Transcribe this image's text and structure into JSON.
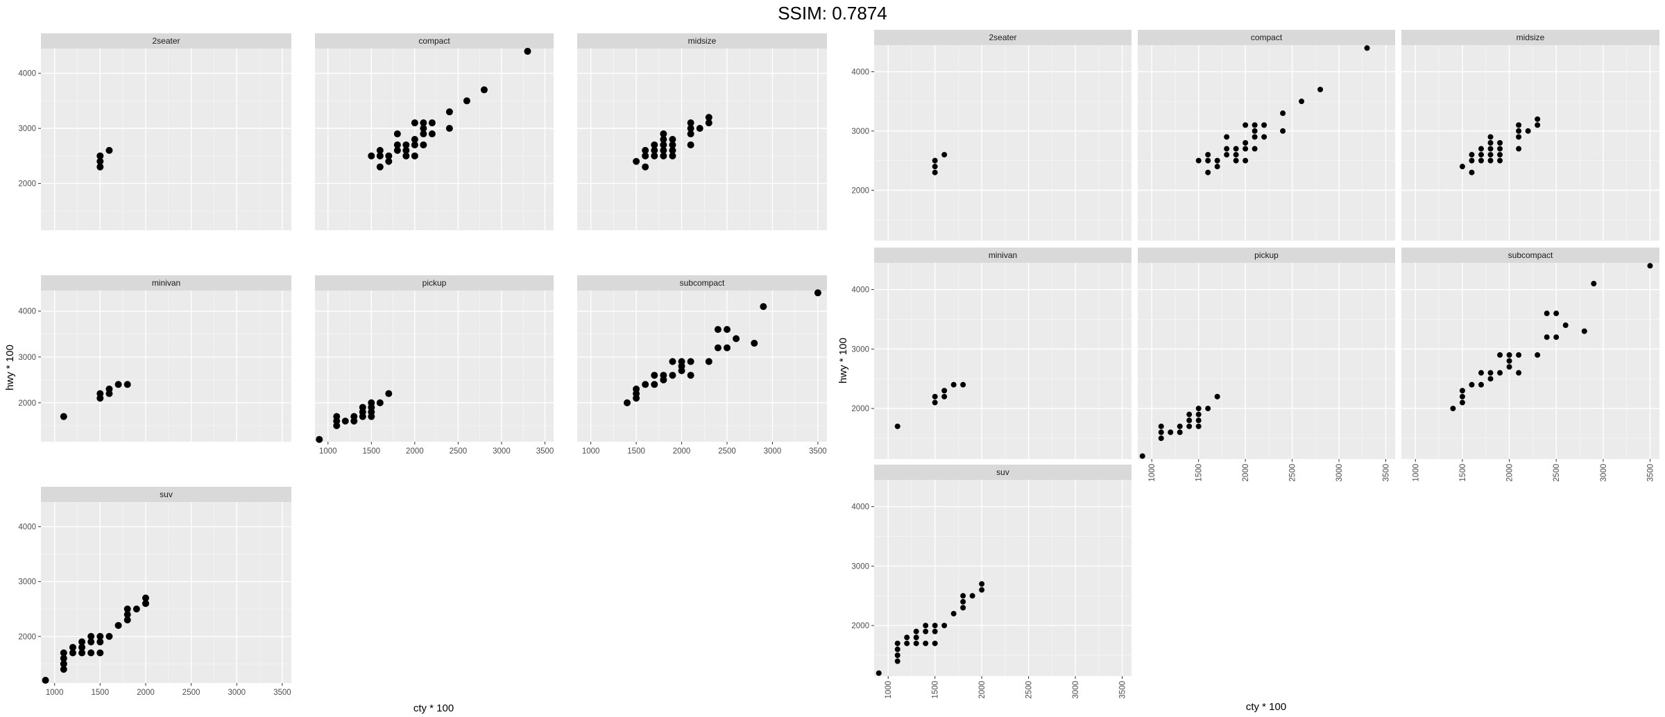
{
  "header": {
    "title": "SSIM: 0.7874"
  },
  "colors": {
    "panel_bg": "#ebebeb",
    "strip_bg": "#d9d9d9",
    "grid": "#ffffff",
    "point": "#000000",
    "tick": "#4d4d4d"
  },
  "chart_data": [
    {
      "type": "scatter",
      "facet_layout": "3x3, fixed scales, x tick labels only on bottom panel of each column",
      "xlabel": "cty * 100",
      "ylabel": "hwy * 100",
      "xlim": [
        850,
        3600
      ],
      "ylim": [
        1150,
        4450
      ],
      "x_ticks": [
        1000,
        1500,
        2000,
        2500,
        3000,
        3500
      ],
      "y_ticks": [
        2000,
        3000,
        4000
      ],
      "x_tick_rotation": 0,
      "grid": true,
      "facets": [
        {
          "label": "2seater",
          "points": [
            [
              1500,
              2300
            ],
            [
              1500,
              2400
            ],
            [
              1500,
              2500
            ],
            [
              1600,
              2600
            ]
          ]
        },
        {
          "label": "compact",
          "points": [
            [
              1500,
              2500
            ],
            [
              1600,
              2300
            ],
            [
              1600,
              2500
            ],
            [
              1600,
              2600
            ],
            [
              1700,
              2400
            ],
            [
              1700,
              2500
            ],
            [
              1800,
              2600
            ],
            [
              1800,
              2700
            ],
            [
              1800,
              2900
            ],
            [
              1900,
              2500
            ],
            [
              1900,
              2600
            ],
            [
              1900,
              2700
            ],
            [
              2000,
              2500
            ],
            [
              2000,
              2700
            ],
            [
              2000,
              2800
            ],
            [
              2000,
              3100
            ],
            [
              2100,
              2700
            ],
            [
              2100,
              2900
            ],
            [
              2100,
              3000
            ],
            [
              2100,
              3100
            ],
            [
              2200,
              2900
            ],
            [
              2200,
              3100
            ],
            [
              2400,
              3000
            ],
            [
              2400,
              3300
            ],
            [
              2600,
              3500
            ],
            [
              2800,
              3700
            ],
            [
              3300,
              4400
            ]
          ]
        },
        {
          "label": "midsize",
          "points": [
            [
              1500,
              2400
            ],
            [
              1600,
              2300
            ],
            [
              1600,
              2500
            ],
            [
              1600,
              2600
            ],
            [
              1700,
              2500
            ],
            [
              1700,
              2600
            ],
            [
              1700,
              2700
            ],
            [
              1800,
              2500
            ],
            [
              1800,
              2600
            ],
            [
              1800,
              2700
            ],
            [
              1800,
              2800
            ],
            [
              1800,
              2900
            ],
            [
              1900,
              2500
            ],
            [
              1900,
              2600
            ],
            [
              1900,
              2700
            ],
            [
              1900,
              2800
            ],
            [
              2100,
              2700
            ],
            [
              2100,
              2900
            ],
            [
              2100,
              3000
            ],
            [
              2100,
              3100
            ],
            [
              2200,
              3000
            ],
            [
              2300,
              3100
            ],
            [
              2300,
              3200
            ]
          ]
        },
        {
          "label": "minivan",
          "points": [
            [
              1100,
              1700
            ],
            [
              1500,
              2100
            ],
            [
              1500,
              2200
            ],
            [
              1600,
              2200
            ],
            [
              1600,
              2300
            ],
            [
              1700,
              2400
            ],
            [
              1800,
              2400
            ]
          ]
        },
        {
          "label": "pickup",
          "points": [
            [
              900,
              1200
            ],
            [
              1100,
              1500
            ],
            [
              1100,
              1600
            ],
            [
              1100,
              1700
            ],
            [
              1200,
              1600
            ],
            [
              1300,
              1600
            ],
            [
              1300,
              1700
            ],
            [
              1400,
              1700
            ],
            [
              1400,
              1800
            ],
            [
              1400,
              1900
            ],
            [
              1500,
              1700
            ],
            [
              1500,
              1800
            ],
            [
              1500,
              1900
            ],
            [
              1500,
              2000
            ],
            [
              1600,
              2000
            ],
            [
              1700,
              2200
            ]
          ]
        },
        {
          "label": "subcompact",
          "points": [
            [
              1400,
              2000
            ],
            [
              1500,
              2100
            ],
            [
              1500,
              2200
            ],
            [
              1500,
              2300
            ],
            [
              1600,
              2400
            ],
            [
              1700,
              2400
            ],
            [
              1700,
              2600
            ],
            [
              1800,
              2500
            ],
            [
              1800,
              2600
            ],
            [
              1900,
              2600
            ],
            [
              1900,
              2900
            ],
            [
              2000,
              2700
            ],
            [
              2000,
              2800
            ],
            [
              2000,
              2900
            ],
            [
              2100,
              2600
            ],
            [
              2100,
              2900
            ],
            [
              2300,
              2900
            ],
            [
              2400,
              3200
            ],
            [
              2400,
              3600
            ],
            [
              2500,
              3200
            ],
            [
              2500,
              3600
            ],
            [
              2600,
              3400
            ],
            [
              2800,
              3300
            ],
            [
              2900,
              4100
            ],
            [
              3500,
              4400
            ]
          ]
        },
        {
          "label": "suv",
          "points": [
            [
              900,
              1200
            ],
            [
              1100,
              1400
            ],
            [
              1100,
              1500
            ],
            [
              1100,
              1600
            ],
            [
              1100,
              1700
            ],
            [
              1200,
              1700
            ],
            [
              1200,
              1800
            ],
            [
              1300,
              1700
            ],
            [
              1300,
              1800
            ],
            [
              1300,
              1900
            ],
            [
              1400,
              1700
            ],
            [
              1400,
              1900
            ],
            [
              1400,
              2000
            ],
            [
              1500,
              1700
            ],
            [
              1500,
              1900
            ],
            [
              1500,
              2000
            ],
            [
              1600,
              2000
            ],
            [
              1700,
              2200
            ],
            [
              1800,
              2300
            ],
            [
              1800,
              2400
            ],
            [
              1800,
              2500
            ],
            [
              1900,
              2500
            ],
            [
              2000,
              2600
            ],
            [
              2000,
              2700
            ]
          ]
        }
      ]
    },
    {
      "type": "scatter",
      "facet_layout": "3x3, fixed scales, x tick labels rotated vertically",
      "xlabel": "cty * 100",
      "ylabel": "hwy * 100",
      "xlim": [
        850,
        3600
      ],
      "ylim": [
        1150,
        4450
      ],
      "x_ticks": [
        1000,
        1500,
        2000,
        2500,
        3000,
        3500
      ],
      "y_ticks": [
        2000,
        3000,
        4000
      ],
      "x_tick_rotation": -90,
      "grid": true,
      "facets": [
        {
          "label": "2seater",
          "points": [
            [
              1500,
              2300
            ],
            [
              1500,
              2400
            ],
            [
              1500,
              2500
            ],
            [
              1600,
              2600
            ]
          ]
        },
        {
          "label": "compact",
          "points": [
            [
              1500,
              2500
            ],
            [
              1600,
              2300
            ],
            [
              1600,
              2500
            ],
            [
              1600,
              2600
            ],
            [
              1700,
              2400
            ],
            [
              1700,
              2500
            ],
            [
              1800,
              2600
            ],
            [
              1800,
              2700
            ],
            [
              1800,
              2900
            ],
            [
              1900,
              2500
            ],
            [
              1900,
              2600
            ],
            [
              1900,
              2700
            ],
            [
              2000,
              2500
            ],
            [
              2000,
              2700
            ],
            [
              2000,
              2800
            ],
            [
              2000,
              3100
            ],
            [
              2100,
              2700
            ],
            [
              2100,
              2900
            ],
            [
              2100,
              3000
            ],
            [
              2100,
              3100
            ],
            [
              2200,
              2900
            ],
            [
              2200,
              3100
            ],
            [
              2400,
              3000
            ],
            [
              2400,
              3300
            ],
            [
              2600,
              3500
            ],
            [
              2800,
              3700
            ],
            [
              3300,
              4400
            ]
          ]
        },
        {
          "label": "midsize",
          "points": [
            [
              1500,
              2400
            ],
            [
              1600,
              2300
            ],
            [
              1600,
              2500
            ],
            [
              1600,
              2600
            ],
            [
              1700,
              2500
            ],
            [
              1700,
              2600
            ],
            [
              1700,
              2700
            ],
            [
              1800,
              2500
            ],
            [
              1800,
              2600
            ],
            [
              1800,
              2700
            ],
            [
              1800,
              2800
            ],
            [
              1800,
              2900
            ],
            [
              1900,
              2500
            ],
            [
              1900,
              2600
            ],
            [
              1900,
              2700
            ],
            [
              1900,
              2800
            ],
            [
              2100,
              2700
            ],
            [
              2100,
              2900
            ],
            [
              2100,
              3000
            ],
            [
              2100,
              3100
            ],
            [
              2200,
              3000
            ],
            [
              2300,
              3100
            ],
            [
              2300,
              3200
            ]
          ]
        },
        {
          "label": "minivan",
          "points": [
            [
              1100,
              1700
            ],
            [
              1500,
              2100
            ],
            [
              1500,
              2200
            ],
            [
              1600,
              2200
            ],
            [
              1600,
              2300
            ],
            [
              1700,
              2400
            ],
            [
              1800,
              2400
            ]
          ]
        },
        {
          "label": "pickup",
          "points": [
            [
              900,
              1200
            ],
            [
              1100,
              1500
            ],
            [
              1100,
              1600
            ],
            [
              1100,
              1700
            ],
            [
              1200,
              1600
            ],
            [
              1300,
              1600
            ],
            [
              1300,
              1700
            ],
            [
              1400,
              1700
            ],
            [
              1400,
              1800
            ],
            [
              1400,
              1900
            ],
            [
              1500,
              1700
            ],
            [
              1500,
              1800
            ],
            [
              1500,
              1900
            ],
            [
              1500,
              2000
            ],
            [
              1600,
              2000
            ],
            [
              1700,
              2200
            ]
          ]
        },
        {
          "label": "subcompact",
          "points": [
            [
              1400,
              2000
            ],
            [
              1500,
              2100
            ],
            [
              1500,
              2200
            ],
            [
              1500,
              2300
            ],
            [
              1600,
              2400
            ],
            [
              1700,
              2400
            ],
            [
              1700,
              2600
            ],
            [
              1800,
              2500
            ],
            [
              1800,
              2600
            ],
            [
              1900,
              2600
            ],
            [
              1900,
              2900
            ],
            [
              2000,
              2700
            ],
            [
              2000,
              2800
            ],
            [
              2000,
              2900
            ],
            [
              2100,
              2600
            ],
            [
              2100,
              2900
            ],
            [
              2300,
              2900
            ],
            [
              2400,
              3200
            ],
            [
              2400,
              3600
            ],
            [
              2500,
              3200
            ],
            [
              2500,
              3600
            ],
            [
              2600,
              3400
            ],
            [
              2800,
              3300
            ],
            [
              2900,
              4100
            ],
            [
              3500,
              4400
            ]
          ]
        },
        {
          "label": "suv",
          "points": [
            [
              900,
              1200
            ],
            [
              1100,
              1400
            ],
            [
              1100,
              1500
            ],
            [
              1100,
              1600
            ],
            [
              1100,
              1700
            ],
            [
              1200,
              1700
            ],
            [
              1200,
              1800
            ],
            [
              1300,
              1700
            ],
            [
              1300,
              1800
            ],
            [
              1300,
              1900
            ],
            [
              1400,
              1700
            ],
            [
              1400,
              1900
            ],
            [
              1400,
              2000
            ],
            [
              1500,
              1700
            ],
            [
              1500,
              1900
            ],
            [
              1500,
              2000
            ],
            [
              1600,
              2000
            ],
            [
              1700,
              2200
            ],
            [
              1800,
              2300
            ],
            [
              1800,
              2400
            ],
            [
              1800,
              2500
            ],
            [
              1900,
              2500
            ],
            [
              2000,
              2600
            ],
            [
              2000,
              2700
            ]
          ]
        }
      ]
    }
  ]
}
